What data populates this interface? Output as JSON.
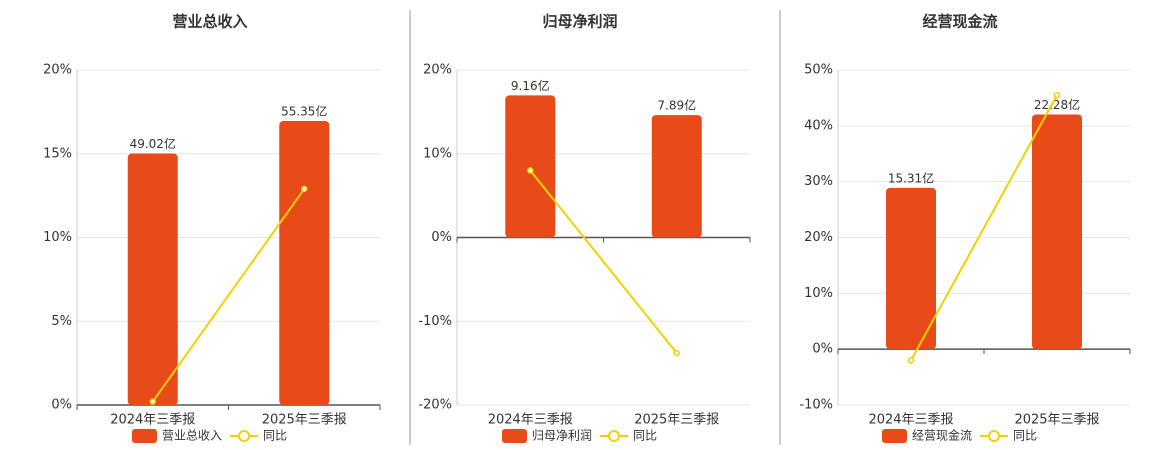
{
  "chart_data": [
    {
      "type": "bar",
      "title": "营业总收入",
      "categories": [
        "2024年三季报",
        "2025年三季报"
      ],
      "series": [
        {
          "name": "营业总收入",
          "color": "#e84a1a",
          "values": [
            49.02,
            55.35
          ],
          "value_labels": [
            "49.02亿",
            "55.35亿"
          ],
          "axis": "y2"
        },
        {
          "name": "同比",
          "color": "#f5d000",
          "type": "line",
          "values": [
            0.2,
            12.9
          ]
        }
      ],
      "ylim": [
        0,
        20
      ],
      "yticks": [
        {
          "value": 0,
          "label": "0%"
        },
        {
          "value": 5,
          "label": "5%"
        },
        {
          "value": 10,
          "label": "10%"
        },
        {
          "value": 15,
          "label": "15%"
        },
        {
          "value": 20,
          "label": "20%"
        }
      ],
      "y2lim": [
        0,
        65.3
      ],
      "grid": true
    },
    {
      "type": "bar",
      "title": "归母净利润",
      "categories": [
        "2024年三季报",
        "2025年三季报"
      ],
      "series": [
        {
          "name": "归母净利润",
          "color": "#e84a1a",
          "values": [
            9.16,
            7.89
          ],
          "value_labels": [
            "9.16亿",
            "7.89亿"
          ],
          "axis": "y2"
        },
        {
          "name": "同比",
          "color": "#f5d000",
          "type": "line",
          "values": [
            8,
            -13.8
          ]
        }
      ],
      "ylim": [
        -20,
        20
      ],
      "yticks": [
        {
          "value": -20,
          "label": "-20%"
        },
        {
          "value": -10,
          "label": "-10%"
        },
        {
          "value": 0,
          "label": "0%"
        },
        {
          "value": 10,
          "label": "10%"
        },
        {
          "value": 20,
          "label": "20%"
        }
      ],
      "y2lim": [
        -10.8,
        10.8
      ],
      "grid": true
    },
    {
      "type": "bar",
      "title": "经营现金流",
      "categories": [
        "2024年三季报",
        "2025年三季报"
      ],
      "series": [
        {
          "name": "经营现金流",
          "color": "#e84a1a",
          "values": [
            15.31,
            22.28
          ],
          "value_labels": [
            "15.31亿",
            "22.28亿"
          ],
          "axis": "y2"
        },
        {
          "name": "同比",
          "color": "#f5d000",
          "type": "line",
          "values": [
            -2,
            45.5
          ]
        }
      ],
      "ylim": [
        -10,
        50
      ],
      "yticks": [
        {
          "value": -10,
          "label": "-10%"
        },
        {
          "value": 0,
          "label": "0%"
        },
        {
          "value": 10,
          "label": "10%"
        },
        {
          "value": 20,
          "label": "20%"
        },
        {
          "value": 30,
          "label": "30%"
        },
        {
          "value": 40,
          "label": "40%"
        },
        {
          "value": 50,
          "label": "50%"
        }
      ],
      "y2lim": [
        -5.3,
        26.5
      ],
      "grid": true
    }
  ]
}
